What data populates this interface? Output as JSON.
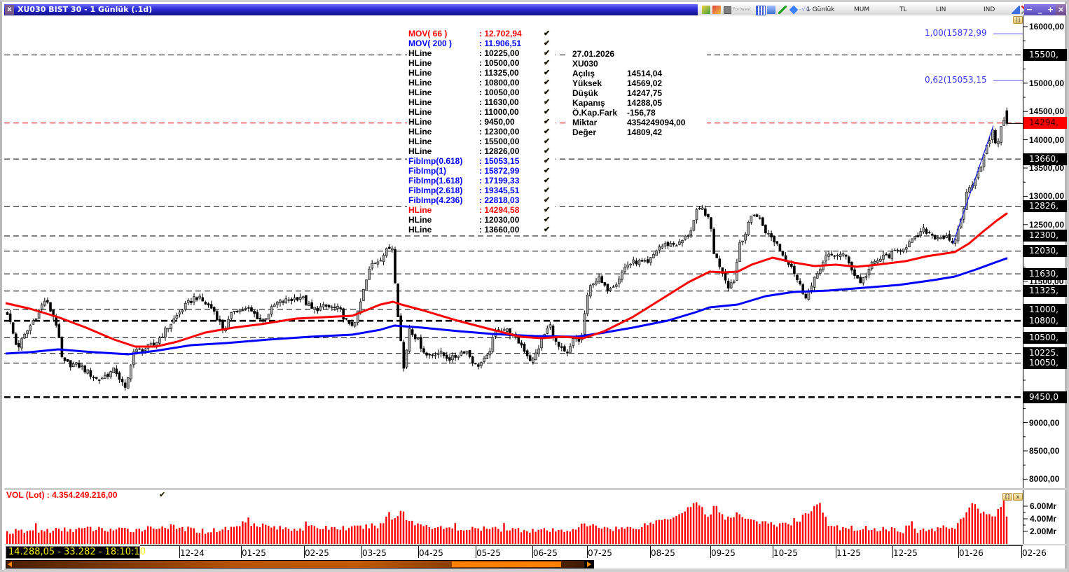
{
  "window": {
    "title": "XU030 BIST 30 - 1 Günlük (.1d)",
    "close_glyph": "x",
    "toolbar": {
      "tiny_label": "Fortwest",
      "period": "1 Günlük",
      "chart_type": "MUM",
      "currency": "TL",
      "scale": "LIN",
      "indicators": "IND",
      "wave_glyph": "-√v-"
    },
    "controls": [
      "−",
      "_",
      "+",
      "×"
    ]
  },
  "legend": [
    {
      "name": "MOV( 66 )",
      "value": ": 12.702,94",
      "color": "#ff0000"
    },
    {
      "name": "MOV( 200 )",
      "value": ": 11.906,51",
      "color": "#0000ff"
    },
    {
      "name": "HLine",
      "value": ": 10225,00",
      "color": "#000000"
    },
    {
      "name": "HLine",
      "value": ": 10500,00",
      "color": "#000000"
    },
    {
      "name": "HLine",
      "value": ": 11325,00",
      "color": "#000000"
    },
    {
      "name": "HLine",
      "value": ": 10800,00",
      "color": "#000000"
    },
    {
      "name": "HLine",
      "value": ": 10050,00",
      "color": "#000000"
    },
    {
      "name": "HLine",
      "value": ": 11630,00",
      "color": "#000000"
    },
    {
      "name": "HLine",
      "value": ": 11000,00",
      "color": "#000000"
    },
    {
      "name": "HLine",
      "value": ": 9450,00",
      "color": "#000000"
    },
    {
      "name": "HLine",
      "value": ": 12300,00",
      "color": "#000000"
    },
    {
      "name": "HLine",
      "value": ": 15500,00",
      "color": "#000000"
    },
    {
      "name": "HLine",
      "value": ": 12826,00",
      "color": "#000000"
    },
    {
      "name": "FibImp(0.618)",
      "value": ": 15053,15",
      "color": "#0000ff"
    },
    {
      "name": "FibImp(1)",
      "value": ": 15872,99",
      "color": "#0000ff"
    },
    {
      "name": "FibImp(1.618)",
      "value": ": 17199,33",
      "color": "#0000ff"
    },
    {
      "name": "FibImp(2.618)",
      "value": ": 19345,51",
      "color": "#0000ff"
    },
    {
      "name": "FibImp(4.236)",
      "value": ": 22818,03",
      "color": "#0000ff"
    },
    {
      "name": "HLine",
      "value": ": 14294,58",
      "color": "#ff0000"
    },
    {
      "name": "HLine",
      "value": ": 12030,00",
      "color": "#000000"
    },
    {
      "name": "HLine",
      "value": ": 13660,00",
      "color": "#000000"
    }
  ],
  "legend_check": "✔",
  "info": {
    "date": "27.01.2026",
    "symbol": "XU030",
    "rows": [
      {
        "label": "Açılış",
        "value": "14514,04"
      },
      {
        "label": "Yüksek",
        "value": "14569,02"
      },
      {
        "label": "Düşük",
        "value": "14247,75"
      },
      {
        "label": "Kapanış",
        "value": "14288,05"
      },
      {
        "label": "Ö.Kap.Fark",
        "value": "-156,78"
      },
      {
        "label": "Miktar",
        "value": "4354249094,00"
      },
      {
        "label": "Değer",
        "value": "14809,42"
      }
    ]
  },
  "fib_labels": [
    {
      "text": "1,00(15872,99",
      "price": 15872.99
    },
    {
      "text": "0,62(15053,15",
      "price": 15053.15
    }
  ],
  "y_ticks": [
    {
      "price": 16000,
      "label": "16000,00"
    },
    {
      "price": 15000,
      "label": "15000,00"
    },
    {
      "price": 14500,
      "label": "14500,00"
    },
    {
      "price": 14000,
      "label": "14000,00"
    },
    {
      "price": 13500,
      "label": "13500,00"
    },
    {
      "price": 13000,
      "label": "13000,00"
    },
    {
      "price": 12500,
      "label": "12500,00"
    },
    {
      "price": 11500,
      "label": "11500,00"
    },
    {
      "price": 9000,
      "label": "9000,00"
    },
    {
      "price": 8500,
      "label": "8500,00"
    },
    {
      "price": 8000,
      "label": "8000,00"
    }
  ],
  "hline_labels": [
    {
      "price": 15500,
      "label": "15500,"
    },
    {
      "price": 14294.58,
      "label": "14294,",
      "red": true
    },
    {
      "price": 13660,
      "label": "13660,"
    },
    {
      "price": 12826,
      "label": "12826,"
    },
    {
      "price": 12300,
      "label": "12300,"
    },
    {
      "price": 12030,
      "label": "12030,"
    },
    {
      "price": 11630,
      "label": "11630,"
    },
    {
      "price": 11325,
      "label": "11325,"
    },
    {
      "price": 11000,
      "label": "11000,"
    },
    {
      "price": 10800,
      "label": "10800,"
    },
    {
      "price": 10500,
      "label": "10500,"
    },
    {
      "price": 10225,
      "label": "10225."
    },
    {
      "price": 10050,
      "label": "10050,"
    },
    {
      "price": 9450,
      "label": "9450,0"
    }
  ],
  "volume": {
    "legend": "VOL (Lot)   : 4.354.249.216,00",
    "check": "✔",
    "ticks": [
      {
        "y": 720,
        "label": "6.00Mr"
      },
      {
        "y": 738,
        "label": "4.00Mr"
      },
      {
        "y": 756,
        "label": "2.00Mr"
      }
    ]
  },
  "x_axis": [
    {
      "x": 253,
      "label": "12-24"
    },
    {
      "x": 341,
      "label": "01-25"
    },
    {
      "x": 431,
      "label": "02-25"
    },
    {
      "x": 513,
      "label": "03-25"
    },
    {
      "x": 594,
      "label": "04-25"
    },
    {
      "x": 676,
      "label": "05-25"
    },
    {
      "x": 757,
      "label": "06-25"
    },
    {
      "x": 835,
      "label": "07-25"
    },
    {
      "x": 925,
      "label": "08-25"
    },
    {
      "x": 1011,
      "label": "09-25"
    },
    {
      "x": 1100,
      "label": "10-25"
    },
    {
      "x": 1190,
      "label": "11-25"
    },
    {
      "x": 1271,
      "label": "12-25"
    },
    {
      "x": 1365,
      "label": "01-26"
    },
    {
      "x": 1455,
      "label": "02-26"
    }
  ],
  "status": "14.288,05 - 33.282 - 18:10:10",
  "pane_buttons": {
    "restore": "[]",
    "close": "x"
  },
  "colors": {
    "ma66": "#ff0000",
    "ma200": "#0000ff",
    "volume": "#ff0000",
    "fib": "#5858ff",
    "hline": "#000000",
    "hline_red": "#e00000"
  },
  "chart_data": {
    "type": "candlestick",
    "title": "XU030 BIST 30 - 1 Günlük (.1d)",
    "xlabel": "",
    "ylabel": "",
    "ylim": [
      8000,
      16000
    ],
    "grid": false,
    "x_tick_labels": [
      "12-24",
      "01-25",
      "02-25",
      "03-25",
      "04-25",
      "05-25",
      "06-25",
      "07-25",
      "08-25",
      "09-25",
      "10-25",
      "11-25",
      "12-25",
      "01-26",
      "02-26"
    ],
    "y_tick_labels": [
      "16000,00",
      "15000,00",
      "14500,00",
      "14000,00",
      "13500,00",
      "13000,00",
      "12500,00",
      "9000,00",
      "8500,00",
      "8000,00"
    ],
    "last_bar": {
      "date": "27.01.2026",
      "open": 14514.04,
      "high": 14569.02,
      "low": 14247.75,
      "close": 14288.05,
      "change": -156.78
    },
    "monthly_close_estimate": {
      "categories": [
        "12-24",
        "01-25",
        "02-25",
        "03-25",
        "04-25",
        "05-25",
        "06-25",
        "07-25",
        "08-25",
        "09-25",
        "10-25",
        "11-25",
        "12-25",
        "01-26"
      ],
      "values": [
        11000,
        11000,
        11000,
        11300,
        10500,
        10000,
        10100,
        11300,
        11900,
        12400,
        12200,
        12000,
        11980,
        12450
      ]
    },
    "moving_averages": [
      {
        "name": "MOV( 66 )",
        "last": 12702.94,
        "color": "#ff0000"
      },
      {
        "name": "MOV( 200 )",
        "last": 11906.51,
        "color": "#0000ff"
      }
    ],
    "hlines": [
      10225,
      10500,
      11325,
      10800,
      10050,
      11630,
      11000,
      9450,
      12300,
      15500,
      12826,
      14294.58,
      12030,
      13660
    ],
    "thick_hlines": [
      10800,
      9450
    ],
    "fib_levels": [
      {
        "ratio": 0.618,
        "value": 15053.15
      },
      {
        "ratio": 1,
        "value": 15872.99
      },
      {
        "ratio": 1.618,
        "value": 17199.33
      },
      {
        "ratio": 2.618,
        "value": 19345.51
      },
      {
        "ratio": 4.236,
        "value": 22818.03
      }
    ],
    "trendline": [
      [
        1357,
        12150
      ],
      [
        1415,
        14250
      ]
    ],
    "price_path": [
      [
        5,
        10988
      ],
      [
        20,
        10307
      ],
      [
        40,
        10740
      ],
      [
        60,
        11173
      ],
      [
        75,
        10800
      ],
      [
        85,
        10060
      ],
      [
        110,
        10000
      ],
      [
        135,
        9750
      ],
      [
        160,
        9935
      ],
      [
        175,
        9560
      ],
      [
        185,
        10245
      ],
      [
        200,
        10300
      ],
      [
        215,
        10370
      ],
      [
        235,
        10680
      ],
      [
        255,
        11000
      ],
      [
        275,
        11235
      ],
      [
        300,
        11000
      ],
      [
        315,
        10620
      ],
      [
        330,
        11000
      ],
      [
        350,
        11000
      ],
      [
        370,
        10800
      ],
      [
        390,
        11110
      ],
      [
        410,
        11170
      ],
      [
        425,
        11235
      ],
      [
        440,
        11000
      ],
      [
        460,
        11050
      ],
      [
        480,
        11000
      ],
      [
        495,
        10680
      ],
      [
        505,
        10860
      ],
      [
        515,
        11360
      ],
      [
        525,
        11790
      ],
      [
        540,
        11920
      ],
      [
        550,
        12080
      ],
      [
        556,
        12100
      ],
      [
        562,
        11110
      ],
      [
        572,
        9935
      ],
      [
        580,
        10680
      ],
      [
        590,
        10490
      ],
      [
        605,
        10180
      ],
      [
        620,
        10245
      ],
      [
        640,
        10120
      ],
      [
        660,
        10300
      ],
      [
        675,
        10000
      ],
      [
        690,
        10120
      ],
      [
        705,
        10680
      ],
      [
        720,
        10620
      ],
      [
        740,
        10370
      ],
      [
        755,
        10060
      ],
      [
        770,
        10490
      ],
      [
        780,
        10740
      ],
      [
        790,
        10370
      ],
      [
        805,
        10180
      ],
      [
        815,
        10490
      ],
      [
        825,
        10430
      ],
      [
        832,
        11110
      ],
      [
        840,
        11480
      ],
      [
        850,
        11545
      ],
      [
        860,
        11360
      ],
      [
        875,
        11480
      ],
      [
        890,
        11790
      ],
      [
        905,
        11850
      ],
      [
        920,
        11790
      ],
      [
        935,
        12100
      ],
      [
        950,
        12160
      ],
      [
        965,
        12160
      ],
      [
        980,
        12350
      ],
      [
        990,
        12720
      ],
      [
        1000,
        12780
      ],
      [
        1010,
        12470
      ],
      [
        1015,
        11980
      ],
      [
        1025,
        11730
      ],
      [
        1035,
        11420
      ],
      [
        1045,
        11545
      ],
      [
        1050,
        12160
      ],
      [
        1060,
        12350
      ],
      [
        1070,
        12720
      ],
      [
        1080,
        12600
      ],
      [
        1090,
        12350
      ],
      [
        1105,
        12160
      ],
      [
        1115,
        11915
      ],
      [
        1125,
        11790
      ],
      [
        1135,
        11480
      ],
      [
        1145,
        11235
      ],
      [
        1155,
        11420
      ],
      [
        1165,
        11730
      ],
      [
        1175,
        11920
      ],
      [
        1190,
        11980
      ],
      [
        1205,
        11920
      ],
      [
        1215,
        11610
      ],
      [
        1225,
        11480
      ],
      [
        1240,
        11790
      ],
      [
        1255,
        11920
      ],
      [
        1270,
        11980
      ],
      [
        1285,
        12100
      ],
      [
        1300,
        12225
      ],
      [
        1315,
        12410
      ],
      [
        1330,
        12285
      ],
      [
        1345,
        12285
      ],
      [
        1355,
        12125
      ],
      [
        1365,
        12470
      ],
      [
        1375,
        13030
      ],
      [
        1385,
        13280
      ],
      [
        1395,
        13525
      ],
      [
        1405,
        13900
      ],
      [
        1412,
        14140
      ],
      [
        1418,
        13900
      ],
      [
        1425,
        14200
      ],
      [
        1430,
        14450
      ],
      [
        1435,
        14288
      ]
    ],
    "ma66_path": [
      [
        5,
        11111
      ],
      [
        40,
        11012
      ],
      [
        80,
        10864
      ],
      [
        120,
        10678
      ],
      [
        160,
        10468
      ],
      [
        190,
        10344
      ],
      [
        220,
        10344
      ],
      [
        250,
        10431
      ],
      [
        290,
        10592
      ],
      [
        330,
        10678
      ],
      [
        370,
        10740
      ],
      [
        420,
        10839
      ],
      [
        460,
        10864
      ],
      [
        500,
        10889
      ],
      [
        520,
        10988
      ],
      [
        540,
        11087
      ],
      [
        558,
        11136
      ],
      [
        570,
        11087
      ],
      [
        600,
        10988
      ],
      [
        650,
        10802
      ],
      [
        700,
        10641
      ],
      [
        740,
        10517
      ],
      [
        770,
        10493
      ],
      [
        800,
        10517
      ],
      [
        830,
        10493
      ],
      [
        860,
        10617
      ],
      [
        900,
        10864
      ],
      [
        940,
        11173
      ],
      [
        980,
        11483
      ],
      [
        1010,
        11668
      ],
      [
        1030,
        11656
      ],
      [
        1050,
        11668
      ],
      [
        1070,
        11792
      ],
      [
        1100,
        11916
      ],
      [
        1130,
        11829
      ],
      [
        1160,
        11767
      ],
      [
        1190,
        11792
      ],
      [
        1220,
        11755
      ],
      [
        1250,
        11792
      ],
      [
        1290,
        11854
      ],
      [
        1320,
        11941
      ],
      [
        1360,
        12015
      ],
      [
        1380,
        12163
      ],
      [
        1400,
        12374
      ],
      [
        1420,
        12572
      ],
      [
        1435,
        12703
      ]
    ],
    "ma200_path": [
      [
        5,
        10220
      ],
      [
        40,
        10245
      ],
      [
        80,
        10295
      ],
      [
        130,
        10245
      ],
      [
        180,
        10208
      ],
      [
        220,
        10270
      ],
      [
        270,
        10369
      ],
      [
        320,
        10406
      ],
      [
        380,
        10468
      ],
      [
        440,
        10517
      ],
      [
        500,
        10554
      ],
      [
        540,
        10641
      ],
      [
        560,
        10715
      ],
      [
        600,
        10678
      ],
      [
        650,
        10617
      ],
      [
        700,
        10567
      ],
      [
        760,
        10530
      ],
      [
        820,
        10517
      ],
      [
        860,
        10592
      ],
      [
        900,
        10678
      ],
      [
        950,
        10802
      ],
      [
        990,
        10951
      ],
      [
        1010,
        11037
      ],
      [
        1050,
        11087
      ],
      [
        1090,
        11235
      ],
      [
        1130,
        11309
      ],
      [
        1180,
        11334
      ],
      [
        1230,
        11384
      ],
      [
        1280,
        11433
      ],
      [
        1330,
        11520
      ],
      [
        1360,
        11582
      ],
      [
        1390,
        11705
      ],
      [
        1420,
        11842
      ],
      [
        1435,
        11907
      ]
    ],
    "volume_series": {
      "name": "VOL (Lot)",
      "unit": "Mr",
      "last": 4354249216.0,
      "path": [
        [
          5,
          1.9
        ],
        [
          60,
          2.1
        ],
        [
          120,
          2.4
        ],
        [
          180,
          2.2
        ],
        [
          230,
          2.8
        ],
        [
          290,
          2.0
        ],
        [
          330,
          2.6
        ],
        [
          345,
          3.5
        ],
        [
          400,
          2.4
        ],
        [
          450,
          2.6
        ],
        [
          500,
          2.5
        ],
        [
          540,
          3.0
        ],
        [
          565,
          4.5
        ],
        [
          590,
          3.2
        ],
        [
          640,
          2.3
        ],
        [
          700,
          2.4
        ],
        [
          760,
          2.2
        ],
        [
          800,
          2.0
        ],
        [
          830,
          3.0
        ],
        [
          870,
          2.5
        ],
        [
          900,
          2.5
        ],
        [
          960,
          4.5
        ],
        [
          993,
          6.8
        ],
        [
          1005,
          3.8
        ],
        [
          1017,
          6.5
        ],
        [
          1030,
          3.8
        ],
        [
          1050,
          4.7
        ],
        [
          1080,
          3.5
        ],
        [
          1100,
          3.0
        ],
        [
          1130,
          3.2
        ],
        [
          1165,
          6.6
        ],
        [
          1180,
          2.6
        ],
        [
          1220,
          2.5
        ],
        [
          1260,
          2.4
        ],
        [
          1300,
          2.0
        ],
        [
          1340,
          2.5
        ],
        [
          1360,
          2.8
        ],
        [
          1385,
          6.3
        ],
        [
          1400,
          4.8
        ],
        [
          1415,
          4.6
        ],
        [
          1430,
          6.2
        ],
        [
          1435,
          4.35
        ]
      ],
      "y_ticks": [
        "6.00Mr",
        "4.00Mr",
        "2.00Mr"
      ]
    }
  }
}
